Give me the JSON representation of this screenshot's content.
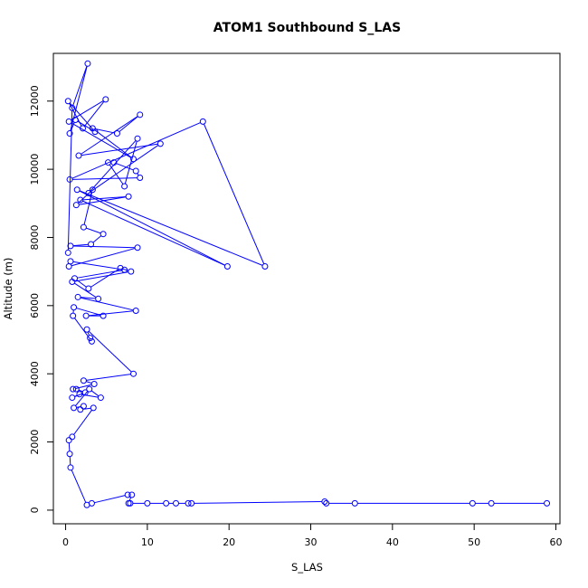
{
  "chart_data": {
    "type": "line",
    "title": "ATOM1 Southbound S_LAS",
    "xlabel": "S_LAS",
    "ylabel": "Altitude (m)",
    "xlim": [
      -1.5,
      60.5
    ],
    "ylim": [
      -400,
      13400
    ],
    "xticks": [
      0,
      10,
      20,
      30,
      40,
      50,
      60
    ],
    "yticks": [
      0,
      2000,
      4000,
      6000,
      8000,
      10000,
      12000
    ],
    "grid": false,
    "legend": "none",
    "series_color": "#0000FF",
    "point_marker": "open-circle",
    "series": [
      {
        "points": [
          [
            0.3,
            7550
          ],
          [
            0.8,
            11800
          ],
          [
            2.7,
            13100
          ],
          [
            0.5,
            11050
          ],
          [
            1.2,
            11450
          ],
          [
            3.6,
            11100
          ],
          [
            0.3,
            12000
          ],
          [
            2.1,
            11200
          ],
          [
            4.9,
            12050
          ],
          [
            0.4,
            11400
          ],
          [
            8.3,
            10300
          ],
          [
            3.3,
            11200
          ],
          [
            6.3,
            11050
          ],
          [
            9.1,
            11600
          ],
          [
            1.6,
            10400
          ],
          [
            11.6,
            10750
          ],
          [
            2.8,
            9300
          ],
          [
            8.8,
            10900
          ],
          [
            7.2,
            9500
          ],
          [
            5.2,
            10200
          ],
          [
            5.9,
            10200
          ],
          [
            8.6,
            9950
          ],
          [
            9.1,
            9750
          ],
          [
            0.5,
            9700
          ],
          [
            16.8,
            11400
          ],
          [
            24.4,
            7150
          ],
          [
            1.4,
            9400
          ],
          [
            19.8,
            7150
          ],
          [
            1.8,
            9100
          ],
          [
            7.7,
            9200
          ],
          [
            1.3,
            8950
          ],
          [
            3.3,
            9400
          ],
          [
            2.2,
            8300
          ],
          [
            4.6,
            8100
          ],
          [
            3.1,
            7800
          ],
          [
            0.6,
            7750
          ],
          [
            8.8,
            7700
          ],
          [
            0.4,
            7150
          ],
          [
            0.6,
            7300
          ],
          [
            7.2,
            7050
          ],
          [
            1.1,
            6800
          ],
          [
            2.8,
            6500
          ],
          [
            6.7,
            7100
          ],
          [
            8.0,
            7000
          ],
          [
            0.8,
            6700
          ],
          [
            4.0,
            6200
          ],
          [
            1.5,
            6250
          ],
          [
            8.6,
            5850
          ],
          [
            2.5,
            5700
          ],
          [
            4.6,
            5700
          ],
          [
            1.0,
            5950
          ],
          [
            0.9,
            5700
          ],
          [
            3.2,
            4950
          ],
          [
            3.0,
            5050
          ],
          [
            2.6,
            5300
          ],
          [
            8.3,
            4000
          ],
          [
            2.2,
            3800
          ],
          [
            3.5,
            3700
          ],
          [
            0.9,
            3550
          ],
          [
            1.3,
            3550
          ],
          [
            2.4,
            3450
          ],
          [
            0.8,
            3300
          ],
          [
            1.7,
            3400
          ],
          [
            4.3,
            3300
          ],
          [
            2.9,
            3550
          ],
          [
            1.0,
            3000
          ],
          [
            2.2,
            3050
          ],
          [
            1.8,
            2950
          ],
          [
            3.4,
            3000
          ],
          [
            0.8,
            2150
          ],
          [
            0.4,
            2050
          ],
          [
            0.5,
            1650
          ],
          [
            0.6,
            1250
          ],
          [
            2.6,
            150
          ],
          [
            3.2,
            200
          ],
          [
            7.6,
            450
          ],
          [
            8.1,
            450
          ],
          [
            7.7,
            200
          ],
          [
            7.9,
            200
          ],
          [
            10.0,
            200
          ],
          [
            12.3,
            200
          ],
          [
            13.5,
            200
          ],
          [
            15.0,
            200
          ],
          [
            15.4,
            200
          ],
          [
            31.7,
            250
          ],
          [
            31.9,
            200
          ],
          [
            35.4,
            200
          ],
          [
            49.8,
            200
          ],
          [
            52.1,
            200
          ],
          [
            58.9,
            200
          ]
        ]
      }
    ]
  }
}
